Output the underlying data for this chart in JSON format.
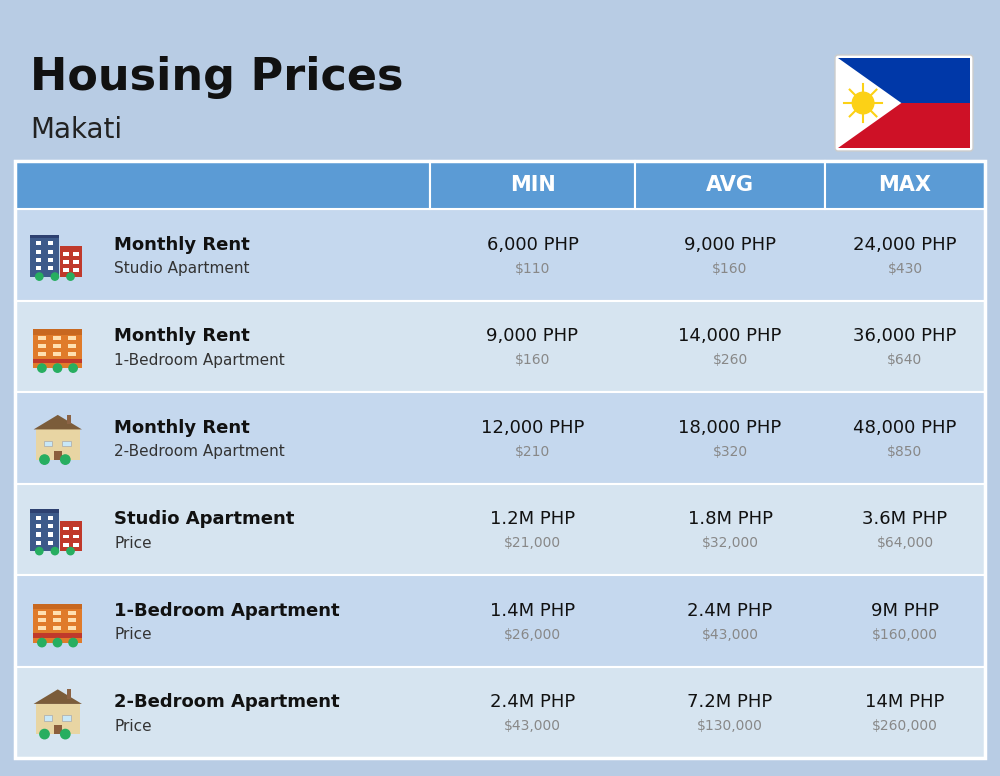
{
  "title": "Housing Prices",
  "subtitle": "Makati",
  "background_color": "#b8cce4",
  "header_color": "#5b9bd5",
  "header_text_color": "#ffffff",
  "row_bg_odd": "#c5d8ee",
  "row_bg_even": "#d6e4f0",
  "col_headers": [
    "MIN",
    "AVG",
    "MAX"
  ],
  "rows": [
    {
      "label_bold": "Monthly Rent",
      "label_sub": "Studio Apartment",
      "icon_type": 0,
      "min_php": "6,000 PHP",
      "min_usd": "$110",
      "avg_php": "9,000 PHP",
      "avg_usd": "$160",
      "max_php": "24,000 PHP",
      "max_usd": "$430"
    },
    {
      "label_bold": "Monthly Rent",
      "label_sub": "1-Bedroom Apartment",
      "icon_type": 1,
      "min_php": "9,000 PHP",
      "min_usd": "$160",
      "avg_php": "14,000 PHP",
      "avg_usd": "$260",
      "max_php": "36,000 PHP",
      "max_usd": "$640"
    },
    {
      "label_bold": "Monthly Rent",
      "label_sub": "2-Bedroom Apartment",
      "icon_type": 2,
      "min_php": "12,000 PHP",
      "min_usd": "$210",
      "avg_php": "18,000 PHP",
      "avg_usd": "$320",
      "max_php": "48,000 PHP",
      "max_usd": "$850"
    },
    {
      "label_bold": "Studio Apartment",
      "label_sub": "Price",
      "icon_type": 0,
      "min_php": "1.2M PHP",
      "min_usd": "$21,000",
      "avg_php": "1.8M PHP",
      "avg_usd": "$32,000",
      "max_php": "3.6M PHP",
      "max_usd": "$64,000"
    },
    {
      "label_bold": "1-Bedroom Apartment",
      "label_sub": "Price",
      "icon_type": 1,
      "min_php": "1.4M PHP",
      "min_usd": "$26,000",
      "avg_php": "2.4M PHP",
      "avg_usd": "$43,000",
      "max_php": "9M PHP",
      "max_usd": "$160,000"
    },
    {
      "label_bold": "2-Bedroom Apartment",
      "label_sub": "Price",
      "icon_type": 2,
      "min_php": "2.4M PHP",
      "min_usd": "$43,000",
      "avg_php": "7.2M PHP",
      "avg_usd": "$130,000",
      "max_php": "14M PHP",
      "max_usd": "$260,000"
    }
  ]
}
